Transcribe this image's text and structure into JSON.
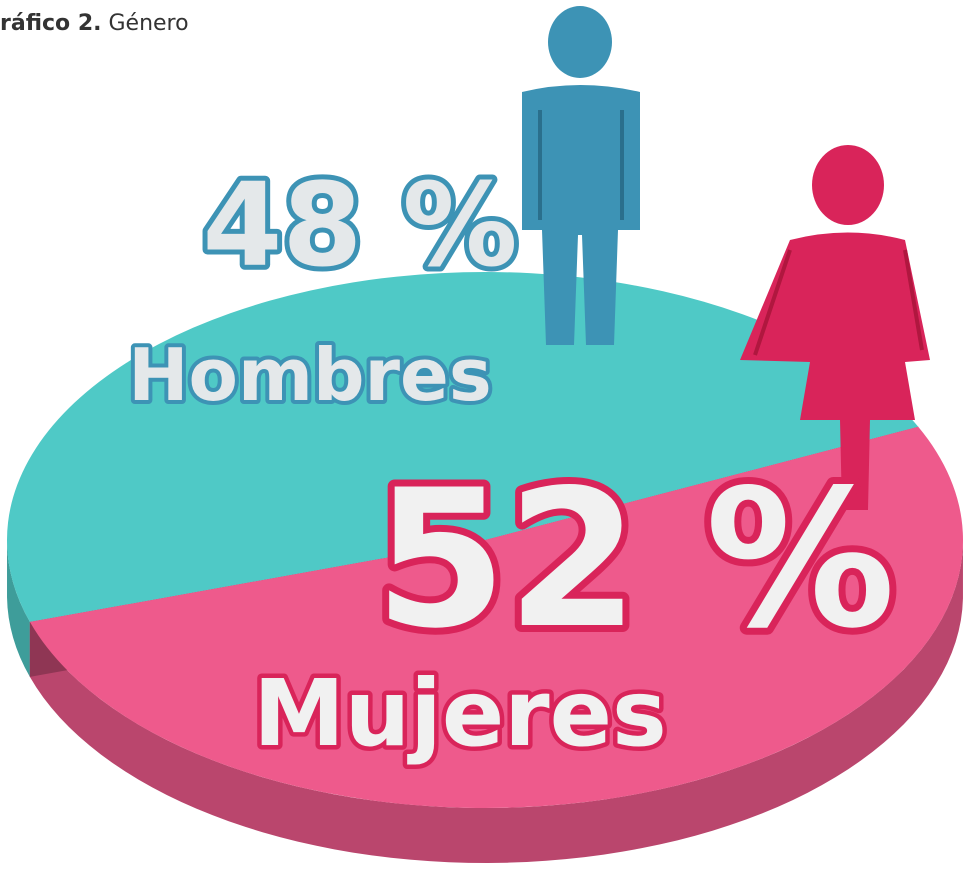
{
  "chart_data": {
    "type": "pie",
    "title_number": "ráfico 2.",
    "title": "Género",
    "categories": [
      "Hombres",
      "Mujeres"
    ],
    "values": [
      48,
      52
    ],
    "value_labels": [
      "48 %",
      "52 %"
    ],
    "colors": [
      "#4fc9c6",
      "#ee5a8c"
    ]
  }
}
